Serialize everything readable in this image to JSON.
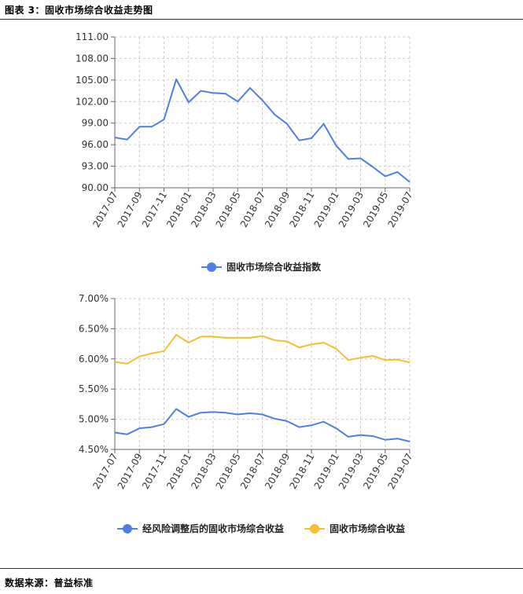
{
  "header": {
    "title": "图表 3：固收市场综合收益走势图"
  },
  "footer": {
    "source": "数据来源：普益标准"
  },
  "colors": {
    "blue": "#4e7fe6",
    "yellow": "#f5c02c",
    "axis": "#666666",
    "grid": "#cccccc"
  },
  "chart_data": [
    {
      "type": "line",
      "categories": [
        "2017-07",
        "2017-08",
        "2017-09",
        "2017-10",
        "2017-11",
        "2017-12",
        "2018-01",
        "2018-02",
        "2018-03",
        "2018-04",
        "2018-05",
        "2018-06",
        "2018-07",
        "2018-08",
        "2018-09",
        "2018-10",
        "2018-11",
        "2018-12",
        "2019-01",
        "2019-02",
        "2019-03",
        "2019-04",
        "2019-05",
        "2019-06",
        "2019-07"
      ],
      "tick_labels": [
        "2017-07",
        "2017-09",
        "2017-11",
        "2018-01",
        "2018-03",
        "2018-05",
        "2018-07",
        "2018-09",
        "2018-11",
        "2019-01",
        "2019-03",
        "2019-05",
        "2019-07"
      ],
      "y_ticks": [
        "111.00",
        "108.00",
        "105.00",
        "102.00",
        "99.00",
        "96.00",
        "93.00",
        "90.00"
      ],
      "ylim": [
        90,
        111
      ],
      "series": [
        {
          "name": "固收市场综合收益指数",
          "color": "#4e7fe6",
          "values": [
            97.0,
            96.7,
            98.5,
            98.5,
            99.5,
            105.1,
            101.9,
            103.5,
            103.2,
            103.1,
            102.0,
            103.9,
            102.2,
            100.2,
            98.9,
            96.6,
            96.9,
            98.9,
            95.9,
            94.0,
            94.1,
            92.9,
            91.6,
            92.2,
            90.8
          ]
        }
      ],
      "xlabel": "",
      "ylabel": "",
      "legend_position": "bottom"
    },
    {
      "type": "line",
      "categories": [
        "2017-07",
        "2017-08",
        "2017-09",
        "2017-10",
        "2017-11",
        "2017-12",
        "2018-01",
        "2018-02",
        "2018-03",
        "2018-04",
        "2018-05",
        "2018-06",
        "2018-07",
        "2018-08",
        "2018-09",
        "2018-10",
        "2018-11",
        "2018-12",
        "2019-01",
        "2019-02",
        "2019-03",
        "2019-04",
        "2019-05",
        "2019-06",
        "2019-07"
      ],
      "tick_labels": [
        "2017-07",
        "2017-09",
        "2017-11",
        "2018-01",
        "2018-03",
        "2018-05",
        "2018-07",
        "2018-09",
        "2018-11",
        "2019-01",
        "2019-03",
        "2019-05",
        "2019-07"
      ],
      "y_ticks": [
        "7.00%",
        "6.50%",
        "6.00%",
        "5.50%",
        "5.00%",
        "4.50%"
      ],
      "ylim": [
        4.5,
        7.0
      ],
      "series": [
        {
          "name": "经风险调整后的固收市场综合收益",
          "color": "#4e7fe6",
          "values": [
            4.78,
            4.75,
            4.85,
            4.87,
            4.92,
            5.17,
            5.04,
            5.11,
            5.12,
            5.11,
            5.08,
            5.1,
            5.08,
            5.01,
            4.97,
            4.87,
            4.9,
            4.96,
            4.85,
            4.71,
            4.74,
            4.72,
            4.66,
            4.68,
            4.63
          ]
        },
        {
          "name": "固收市场综合收益",
          "color": "#f5c02c",
          "values": [
            5.95,
            5.92,
            6.04,
            6.09,
            6.13,
            6.4,
            6.27,
            6.37,
            6.37,
            6.35,
            6.35,
            6.35,
            6.38,
            6.31,
            6.29,
            6.19,
            6.24,
            6.27,
            6.17,
            5.98,
            6.02,
            6.05,
            5.98,
            5.99,
            5.94
          ]
        }
      ],
      "xlabel": "",
      "ylabel": "",
      "legend_position": "bottom"
    }
  ]
}
